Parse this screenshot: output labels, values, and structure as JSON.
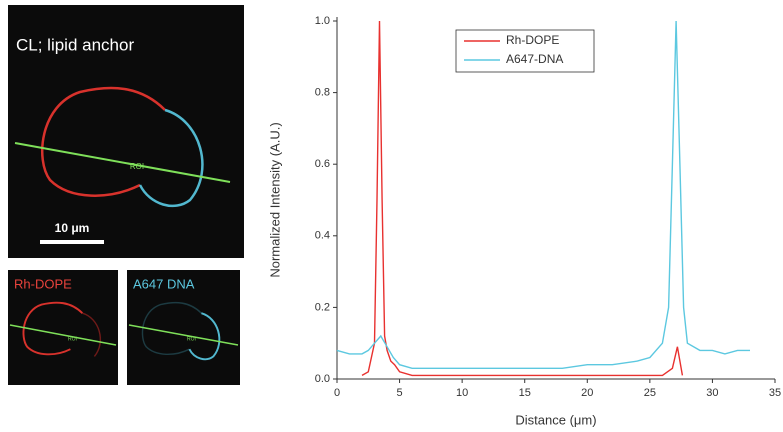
{
  "panels": {
    "main_title": "CL; lipid anchor",
    "roi": "ROI",
    "scale_bar": "10 μm",
    "small": [
      {
        "label": "Rh-DOPE",
        "roi": "ROI"
      },
      {
        "label": "A647 DNA",
        "roi": "ROI"
      }
    ]
  },
  "chart_data": {
    "type": "line",
    "x_label": "Distance (μm)",
    "y_label": "Normalized Intensity (A.U.)",
    "xlim": [
      0,
      35
    ],
    "xticks": [
      0,
      5,
      10,
      15,
      20,
      25,
      30,
      35
    ],
    "ylim": [
      0,
      1
    ],
    "yticks": [
      {
        "value": 0,
        "label": "0.0"
      },
      0.2,
      0.4,
      0.6,
      0.8,
      {
        "value": 1,
        "label": "1.0"
      }
    ],
    "legend": "top-center",
    "series": [
      {
        "name": "Rh-DOPE",
        "color": "#e8312f",
        "x": [
          2,
          2.5,
          3,
          3.2,
          3.4,
          3.6,
          3.8,
          4,
          4.3,
          4.6,
          5,
          6,
          8,
          10,
          12,
          14,
          16,
          18,
          20,
          22,
          24,
          26,
          26.8,
          27.2,
          27.6
        ],
        "values": [
          0.01,
          0.02,
          0.1,
          0.5,
          1.0,
          0.5,
          0.12,
          0.08,
          0.05,
          0.04,
          0.02,
          0.01,
          0.01,
          0.01,
          0.01,
          0.01,
          0.01,
          0.01,
          0.01,
          0.01,
          0.01,
          0.01,
          0.03,
          0.09,
          0.01
        ]
      },
      {
        "name": "A647-DNA",
        "color": "#5cc8e0",
        "x": [
          0,
          1,
          2,
          2.5,
          3,
          3.5,
          4,
          4.5,
          5,
          6,
          8,
          10,
          12,
          14,
          16,
          18,
          20,
          22,
          24,
          25,
          26,
          26.5,
          26.8,
          27.1,
          27.4,
          27.7,
          28,
          29,
          30,
          31,
          32,
          33
        ],
        "values": [
          0.08,
          0.07,
          0.07,
          0.08,
          0.1,
          0.12,
          0.09,
          0.06,
          0.04,
          0.03,
          0.03,
          0.03,
          0.03,
          0.03,
          0.03,
          0.03,
          0.04,
          0.04,
          0.05,
          0.06,
          0.1,
          0.2,
          0.6,
          1.0,
          0.6,
          0.2,
          0.1,
          0.08,
          0.08,
          0.07,
          0.08,
          0.08
        ]
      }
    ]
  }
}
